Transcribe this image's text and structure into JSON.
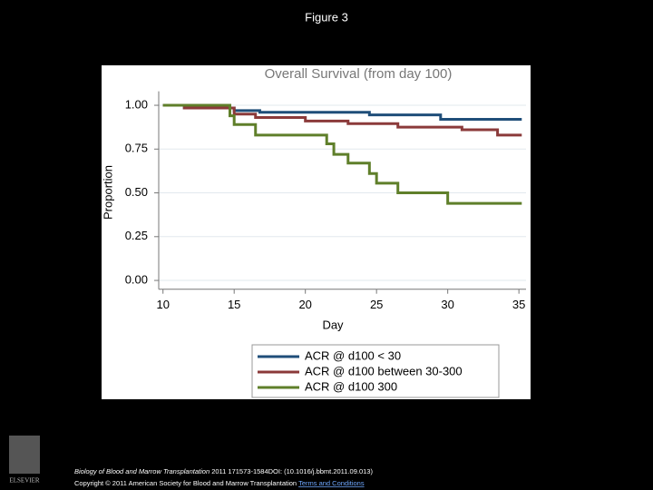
{
  "figure_label": "Figure 3",
  "citation": {
    "journal": "Biology of Blood and Marrow Transplantation",
    "reference": " 2011 171573-1584DOI: (10.1016/j.bbmt.2011.09.013)",
    "copyright": "Copyright © 2011 American Society for Blood and Marrow Transplantation",
    "link": "Terms and Conditions"
  },
  "publisher": "ELSEVIER",
  "chart_data": {
    "type": "step",
    "title": "Overall Survival (from day 100)",
    "x_label": "Day",
    "y_label": "Proportion",
    "xlim": [
      9.7,
      35.5
    ],
    "xticks": [
      10,
      15,
      20,
      25,
      30,
      35
    ],
    "ylim": [
      -0.05,
      1.08
    ],
    "yticks": [
      {
        "value": 0,
        "label": "0.00"
      },
      {
        "value": 0.25,
        "label": "0.25"
      },
      {
        "value": 0.5,
        "label": "0.50"
      },
      {
        "value": 0.75,
        "label": "0.75"
      },
      {
        "value": 1,
        "label": "1.00"
      }
    ],
    "grid": true,
    "legend": "bottom",
    "series": [
      {
        "name": "ACR @ d100 < 30",
        "color": "#1f4e79",
        "x": [
          10,
          11.5,
          11.5,
          15,
          15,
          16.8,
          16.8,
          24.5,
          24.5,
          29.5,
          29.5,
          35.2
        ],
        "values": [
          1,
          1,
          0.985,
          0.985,
          0.97,
          0.97,
          0.96,
          0.96,
          0.945,
          0.945,
          0.92,
          0.92
        ]
      },
      {
        "name": "ACR @ d100 between 30-300",
        "color": "#8b3a3a",
        "x": [
          10,
          11.5,
          11.5,
          15,
          15,
          16.5,
          16.5,
          20,
          20,
          23,
          23,
          26.5,
          26.5,
          31,
          31,
          33.5,
          33.5,
          35.2
        ],
        "values": [
          1,
          1,
          0.985,
          0.985,
          0.95,
          0.95,
          0.93,
          0.93,
          0.91,
          0.91,
          0.895,
          0.895,
          0.875,
          0.875,
          0.86,
          0.86,
          0.83,
          0.83
        ]
      },
      {
        "name": "ACR @ d100  300",
        "color": "#5f7f2a",
        "x": [
          10,
          14.7,
          14.7,
          15,
          15,
          16.5,
          16.5,
          21.5,
          21.5,
          22,
          22,
          23,
          23,
          24.5,
          24.5,
          25,
          25,
          26.5,
          26.5,
          30,
          30,
          35.2
        ],
        "values": [
          1,
          1,
          0.94,
          0.94,
          0.89,
          0.89,
          0.83,
          0.83,
          0.78,
          0.78,
          0.72,
          0.72,
          0.67,
          0.67,
          0.61,
          0.61,
          0.555,
          0.555,
          0.5,
          0.5,
          0.44,
          0.44
        ]
      }
    ]
  }
}
